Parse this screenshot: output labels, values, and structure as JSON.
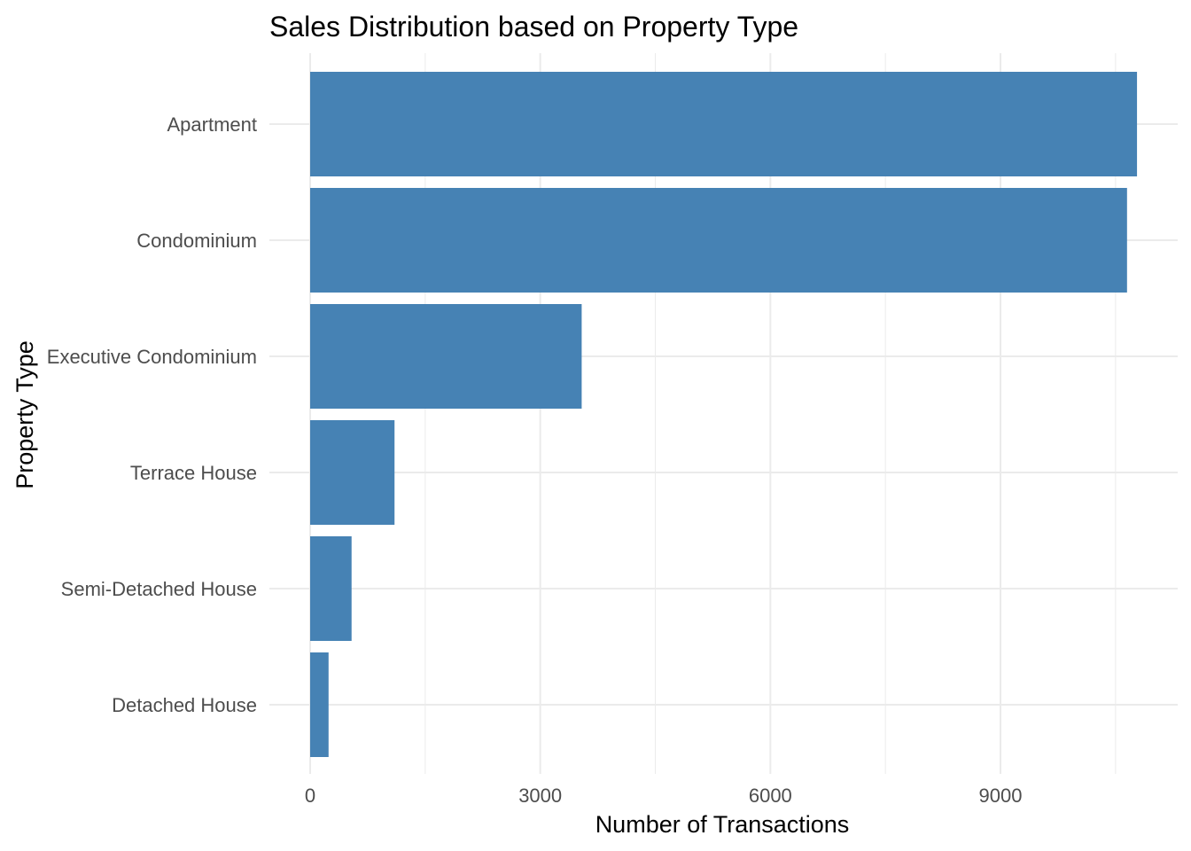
{
  "chart_data": {
    "type": "bar",
    "orientation": "horizontal",
    "title": "Sales Distribution based on Property Type",
    "xlabel": "Number of Transactions",
    "ylabel": "Property Type",
    "categories": [
      "Apartment",
      "Condominium",
      "Executive Condominium",
      "Terrace House",
      "Semi-Detached House",
      "Detached House"
    ],
    "values": [
      10780,
      10650,
      3540,
      1100,
      540,
      240
    ],
    "xlim": [
      0,
      11200
    ],
    "x_ticks": [
      0,
      3000,
      6000,
      9000
    ],
    "x_tick_labels": [
      "0",
      "3000",
      "6000",
      "9000"
    ],
    "grid": true,
    "bar_color": "#4682b4",
    "grid_color": "#ebebeb"
  }
}
